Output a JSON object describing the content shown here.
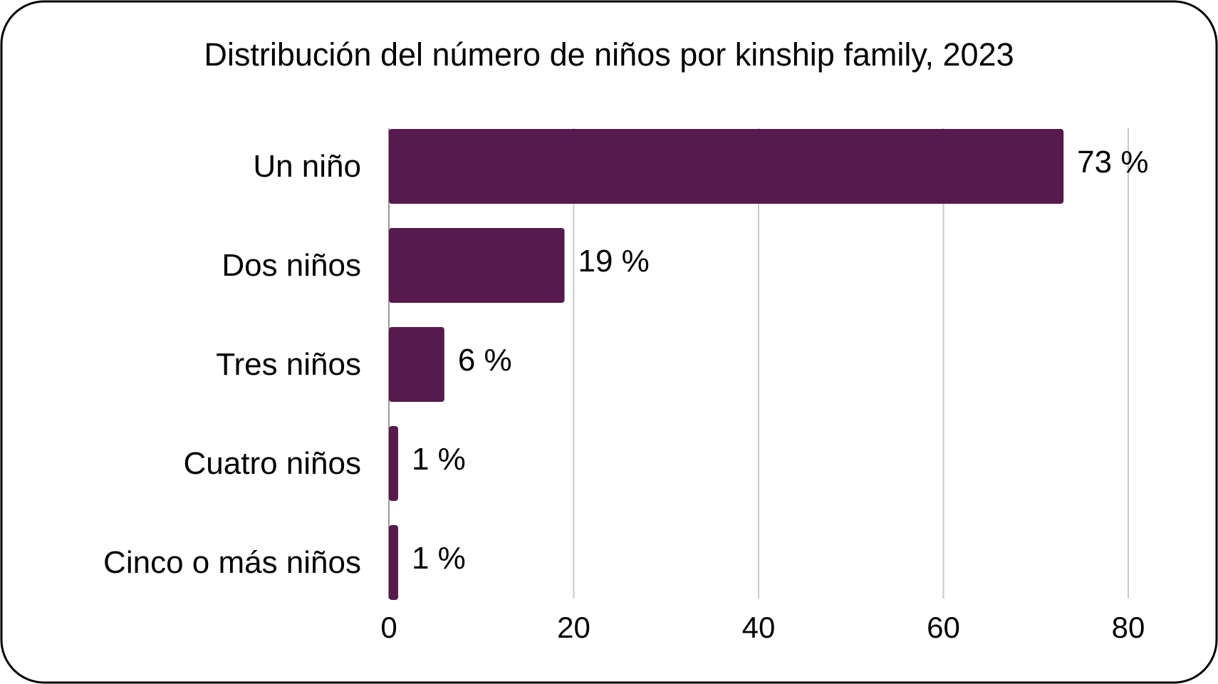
{
  "chart_data": {
    "type": "barh",
    "title": "Distribución del número de niños por kinship family, 2023",
    "categories": [
      "Un niño",
      "Dos niños",
      "Tres niños",
      "Cuatro niños",
      "Cinco o más niños"
    ],
    "values": [
      73,
      19,
      6,
      1,
      1
    ],
    "value_labels": [
      "73 %",
      "19 %",
      "6 %",
      "1 %",
      "1 %"
    ],
    "color": "#561a4c",
    "xlim": [
      0,
      80
    ],
    "xticks": [
      0,
      20,
      40,
      60,
      80
    ],
    "grid": true
  }
}
